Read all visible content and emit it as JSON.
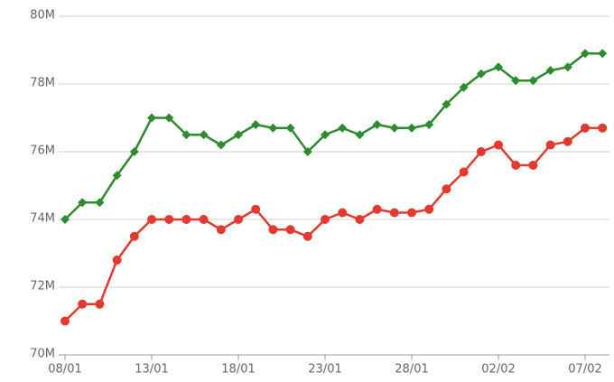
{
  "chart_data": {
    "type": "line",
    "categories": [
      "08/01",
      null,
      null,
      null,
      null,
      "13/01",
      null,
      null,
      null,
      null,
      "18/01",
      null,
      null,
      null,
      null,
      "23/01",
      null,
      null,
      null,
      null,
      "28/01",
      null,
      null,
      null,
      null,
      "02/02",
      null,
      null,
      null,
      null,
      "07/02",
      null
    ],
    "series": [
      {
        "color": "#2e8b2e",
        "marker": "diamond",
        "values": [
          74000000,
          74500000,
          74500000,
          75300000,
          76000000,
          77000000,
          77000000,
          76500000,
          76500000,
          76200000,
          76500000,
          76800000,
          76700000,
          76700000,
          76000000,
          76500000,
          76700000,
          76500000,
          76800000,
          76700000,
          76700000,
          76800000,
          77400000,
          77900000,
          78300000,
          78500000,
          78100000,
          78100000,
          78400000,
          78500000,
          78900000,
          78900000
        ]
      },
      {
        "color": "#e23a2e",
        "marker": "circle",
        "values": [
          71000000,
          71500000,
          71500000,
          72800000,
          73500000,
          74000000,
          74000000,
          74000000,
          74000000,
          73700000,
          74000000,
          74300000,
          73700000,
          73700000,
          73500000,
          74000000,
          74200000,
          74000000,
          74300000,
          74200000,
          74200000,
          74300000,
          74900000,
          75400000,
          76000000,
          76200000,
          75600000,
          75600000,
          76200000,
          76300000,
          76700000,
          76700000
        ]
      }
    ],
    "ylim": [
      70000000,
      80000000
    ],
    "yticks": [
      {
        "value": 70000000,
        "label": "70M"
      },
      {
        "value": 72000000,
        "label": "72M"
      },
      {
        "value": 74000000,
        "label": "74M"
      },
      {
        "value": 76000000,
        "label": "76M"
      },
      {
        "value": 78000000,
        "label": "78M"
      },
      {
        "value": 80000000,
        "label": "80M"
      }
    ],
    "grid": true
  }
}
